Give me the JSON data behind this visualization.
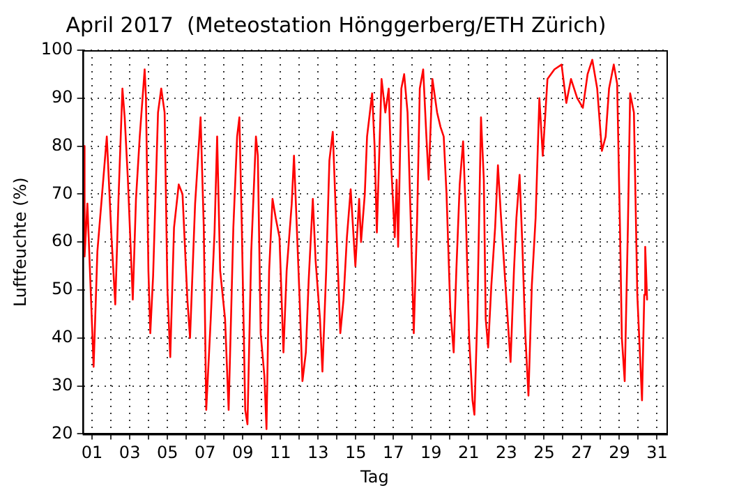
{
  "chart_data": {
    "type": "line",
    "title": "April 2017  (Meteostation Hönggerberg/ETH Zürich)",
    "xlabel": "Tag",
    "ylabel": "Luftfeuchte (%)",
    "x": [
      0.57,
      0.6,
      0.75,
      1.08,
      1.28,
      1.53,
      1.78,
      2.03,
      2.23,
      2.41,
      2.61,
      2.73,
      2.9,
      3.16,
      3.33,
      3.53,
      3.79,
      3.86,
      3.99,
      4.09,
      4.24,
      4.5,
      4.67,
      4.85,
      5.0,
      5.15,
      5.35,
      5.6,
      5.8,
      6.06,
      6.2,
      6.47,
      6.76,
      6.93,
      7.06,
      7.3,
      7.5,
      7.64,
      7.8,
      8.06,
      8.25,
      8.5,
      8.7,
      8.82,
      8.95,
      9.13,
      9.25,
      9.45,
      9.7,
      9.8,
      9.95,
      10.15,
      10.26,
      10.4,
      10.58,
      10.75,
      10.95,
      11.16,
      11.33,
      11.6,
      11.72,
      11.85,
      12.02,
      12.17,
      12.35,
      12.5,
      12.72,
      12.87,
      13.1,
      13.23,
      13.43,
      13.6,
      13.78,
      13.97,
      14.18,
      14.35,
      14.53,
      14.73,
      14.98,
      15.18,
      15.28,
      15.48,
      15.6,
      15.87,
      16.0,
      16.12,
      16.37,
      16.57,
      16.75,
      16.87,
      17.07,
      17.17,
      17.25,
      17.42,
      17.57,
      17.75,
      17.93,
      18.08,
      18.26,
      18.4,
      18.58,
      18.75,
      18.87,
      19.07,
      19.32,
      19.5,
      19.67,
      19.82,
      20.02,
      20.2,
      20.34,
      20.52,
      20.7,
      20.85,
      21.02,
      21.2,
      21.3,
      21.45,
      21.65,
      21.8,
      21.9,
      22.03,
      22.2,
      22.4,
      22.55,
      22.7,
      22.9,
      23.1,
      23.22,
      23.4,
      23.53,
      23.7,
      23.85,
      24.0,
      24.17,
      24.35,
      24.55,
      24.75,
      24.93,
      25.18,
      25.55,
      25.93,
      26.18,
      26.43,
      26.76,
      27.06,
      27.31,
      27.56,
      27.82,
      28.07,
      28.27,
      28.45,
      28.7,
      28.88,
      29.03,
      29.13,
      29.28,
      29.45,
      29.57,
      29.77,
      29.95,
      30.2,
      30.32,
      30.37,
      30.47
    ],
    "series": [
      {
        "color": "#ff0000",
        "values": [
          80,
          57,
          68,
          34,
          58,
          70,
          82,
          61,
          47,
          70,
          92,
          86,
          73,
          48,
          69,
          82,
          96,
          90,
          54,
          41,
          53,
          87,
          92,
          87,
          50,
          36,
          63,
          72,
          70,
          48,
          40,
          68,
          86,
          63,
          25,
          44,
          62,
          82,
          54,
          44,
          25,
          63,
          82,
          86,
          63,
          25,
          22,
          58,
          82,
          78,
          41,
          32,
          21,
          54,
          69,
          65,
          61,
          37,
          54,
          68,
          78,
          65,
          48,
          31,
          37,
          52,
          69,
          56,
          44,
          33,
          54,
          77,
          83,
          63,
          41,
          48,
          61,
          71,
          55,
          69,
          60,
          70,
          82,
          91,
          80,
          62,
          94,
          87,
          92,
          77,
          61,
          73,
          59,
          92,
          95,
          87,
          63,
          41,
          65,
          92,
          96,
          82,
          73,
          94,
          87,
          84,
          82,
          70,
          46,
          37,
          54,
          72,
          81,
          65,
          40,
          27,
          24,
          44,
          86,
          73,
          44,
          38,
          51,
          63,
          76,
          66,
          54,
          42,
          35,
          54,
          65,
          74,
          59,
          41,
          28,
          51,
          65,
          90,
          78,
          94,
          96,
          97,
          89,
          94,
          90,
          88,
          95,
          98,
          92,
          79,
          82,
          92,
          97,
          93,
          63,
          40,
          31,
          63,
          91,
          87,
          49,
          27,
          49,
          59,
          48
        ]
      }
    ],
    "xlim": [
      0.5,
      31.5
    ],
    "xticks": [
      {
        "value": 1,
        "label": "01"
      },
      {
        "value": 2,
        "label": null
      },
      {
        "value": 3,
        "label": "03"
      },
      {
        "value": 4,
        "label": null
      },
      {
        "value": 5,
        "label": "05"
      },
      {
        "value": 6,
        "label": null
      },
      {
        "value": 7,
        "label": "07"
      },
      {
        "value": 8,
        "label": null
      },
      {
        "value": 9,
        "label": "09"
      },
      {
        "value": 10,
        "label": null
      },
      {
        "value": 11,
        "label": "11"
      },
      {
        "value": 12,
        "label": null
      },
      {
        "value": 13,
        "label": "13"
      },
      {
        "value": 14,
        "label": null
      },
      {
        "value": 15,
        "label": "15"
      },
      {
        "value": 16,
        "label": null
      },
      {
        "value": 17,
        "label": "17"
      },
      {
        "value": 18,
        "label": null
      },
      {
        "value": 19,
        "label": "19"
      },
      {
        "value": 20,
        "label": null
      },
      {
        "value": 21,
        "label": "21"
      },
      {
        "value": 22,
        "label": null
      },
      {
        "value": 23,
        "label": "23"
      },
      {
        "value": 24,
        "label": null
      },
      {
        "value": 25,
        "label": "25"
      },
      {
        "value": 26,
        "label": null
      },
      {
        "value": 27,
        "label": "27"
      },
      {
        "value": 28,
        "label": null
      },
      {
        "value": 29,
        "label": "29"
      },
      {
        "value": 30,
        "label": null
      },
      {
        "value": 31,
        "label": "31"
      }
    ],
    "ylim": [
      20,
      100
    ],
    "yticks": [
      20,
      30,
      40,
      50,
      60,
      70,
      80,
      90,
      100
    ],
    "grid": true,
    "marker": "none",
    "line_style": "solid",
    "legend": false
  }
}
